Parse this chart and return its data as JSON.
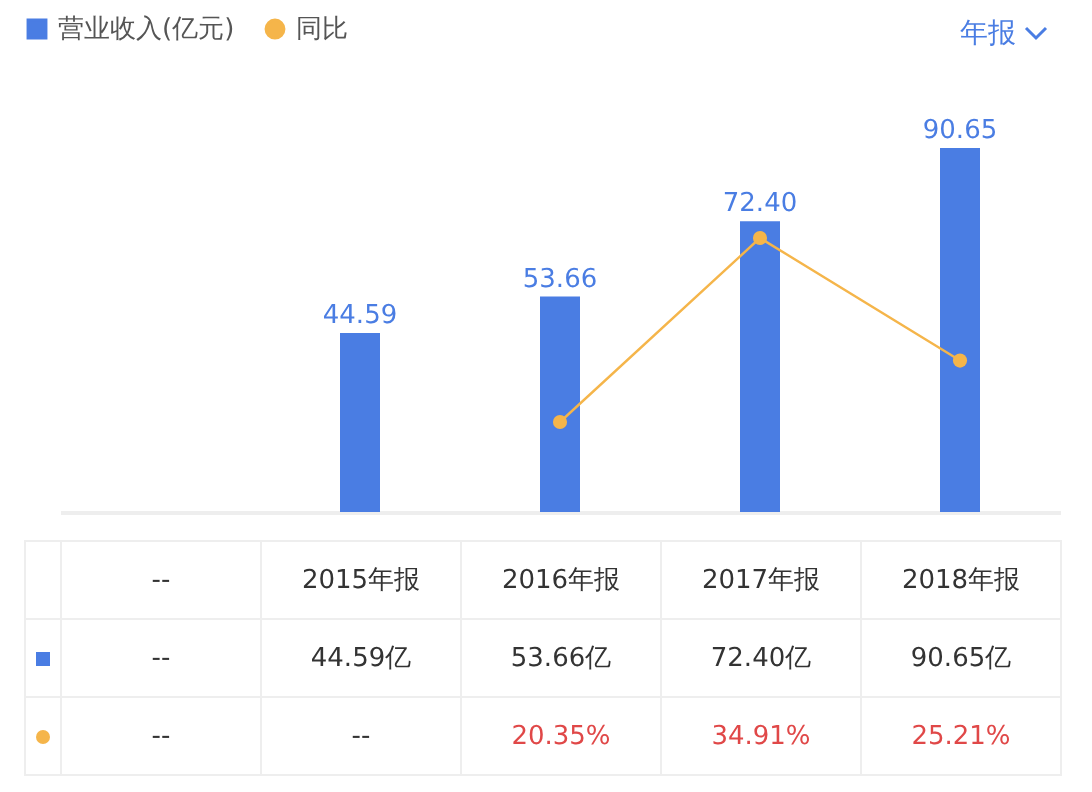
{
  "chart_data": {
    "type": "bar",
    "categories": [
      "--",
      "2015年报",
      "2016年报",
      "2017年报",
      "2018年报"
    ],
    "tick_labels": false,
    "legend": "top left",
    "marker": "circle",
    "annotations": [
      "年报",
      {
        "text": "44.59",
        "x": "2015年报",
        "y": 44.59
      },
      {
        "text": "53.66",
        "x": "2016年报",
        "y": 53.66
      },
      {
        "text": "72.40",
        "x": "2017年报",
        "y": 72.4
      },
      {
        "text": "90.65",
        "x": "2018年报",
        "y": 90.65
      }
    ],
    "series": [
      {
        "name": "营业收入(亿元)",
        "color": "#4a7de3",
        "values": [
          null,
          44.59,
          53.66,
          72.4,
          90.65
        ],
        "value_labels": [
          "--",
          "44.59亿",
          "53.66亿",
          "72.40亿",
          "90.65亿"
        ]
      },
      {
        "name": "同比",
        "type": "line",
        "axis": "y2",
        "color": "#f5b54a",
        "values": [
          null,
          null,
          20.35,
          34.91,
          25.21
        ],
        "value_labels": [
          "--",
          "--",
          "20.35%",
          "34.91%",
          "25.21%"
        ]
      }
    ]
  }
}
